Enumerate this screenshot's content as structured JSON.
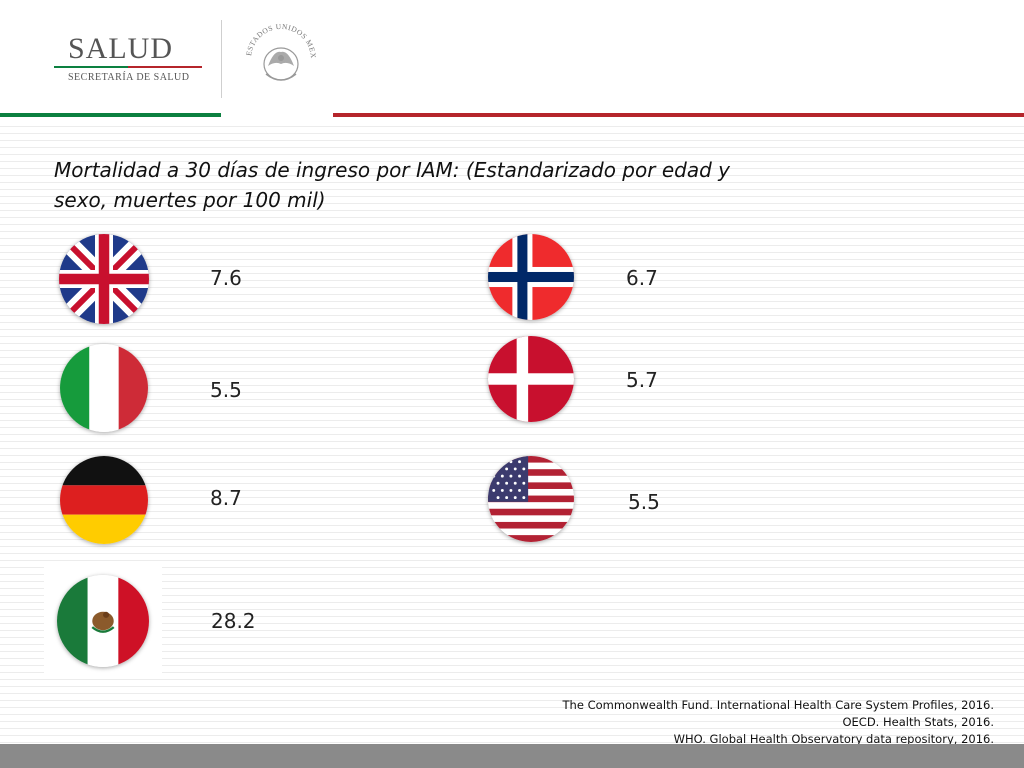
{
  "header": {
    "logo_text": "SALUD",
    "logo_subtext": "SECRETARÍA DE SALUD",
    "seal_text": "ESTADOS UNIDOS MEXICANOS"
  },
  "title": "Mortalidad a 30 días de ingreso por IAM: (Estandarizado por edad y sexo, muertes por 100 mil)",
  "flags": {
    "uk": {
      "icon": "united-kingdom-flag-icon",
      "value": "7.6"
    },
    "italy": {
      "icon": "italy-flag-icon",
      "value": "5.5"
    },
    "germany": {
      "icon": "germany-flag-icon",
      "value": "8.7"
    },
    "mexico": {
      "icon": "mexico-flag-icon",
      "value": "28.2"
    },
    "norway": {
      "icon": "norway-flag-icon",
      "value": "6.7"
    },
    "denmark": {
      "icon": "denmark-flag-icon",
      "value": "5.7"
    },
    "usa": {
      "icon": "usa-flag-icon",
      "value": "5.5"
    }
  },
  "references": [
    "The Commonwealth Fund. International Health Care System Profiles, 2016.",
    "OECD. Health Stats, 2016.",
    "WHO. Global Health Observatory data repository, 2016."
  ],
  "colors": {
    "green": "#0c8040",
    "red": "#b5252b",
    "footer": "#8a8a8a"
  }
}
